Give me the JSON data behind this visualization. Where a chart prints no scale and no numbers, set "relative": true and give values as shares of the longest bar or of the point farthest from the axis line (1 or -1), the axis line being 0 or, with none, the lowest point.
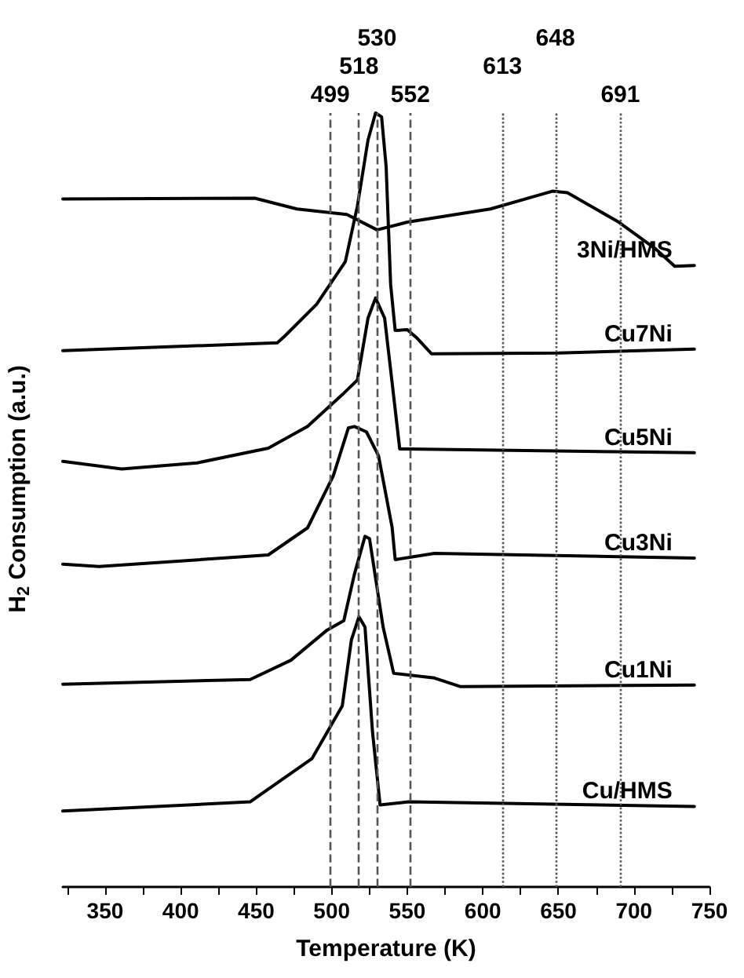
{
  "chart_data": {
    "type": "line",
    "xlabel": "Temperature (K)",
    "ylabel": "H$_{2}$ Consumption (a.u.)",
    "relative": true,
    "legend": false,
    "grid": false,
    "marker": "none",
    "line_style": "solid",
    "xlim": [
      322,
      750
    ],
    "xticks": [
      {
        "value": 325,
        "label": null
      },
      350,
      {
        "value": 375,
        "label": null
      },
      400,
      {
        "value": 425,
        "label": null
      },
      450,
      {
        "value": 475,
        "label": null
      },
      500,
      {
        "value": 525,
        "label": null
      },
      550,
      {
        "value": 575,
        "label": null
      },
      600,
      {
        "value": 625,
        "label": null
      },
      650,
      {
        "value": 675,
        "label": null
      },
      700,
      {
        "value": 725,
        "label": null
      },
      750
    ],
    "series": [
      {
        "name": "3Ni/HMS",
        "color": "#000000",
        "x": [
          322,
          449,
          477,
          510,
          530,
          550,
          605,
          646,
          656,
          690,
          714,
          727,
          740
        ],
        "values": [
          0.889,
          0.89,
          0.876,
          0.869,
          0.849,
          0.859,
          0.876,
          0.899,
          0.897,
          0.859,
          0.825,
          0.802,
          0.803
        ]
      },
      {
        "name": "Cu7Ni",
        "color": "#000000",
        "x": [
          322,
          464,
          469,
          490,
          509,
          517,
          524,
          529,
          533,
          536,
          539,
          542,
          550,
          556,
          566,
          650,
          740
        ],
        "values": [
          0.693,
          0.703,
          0.712,
          0.753,
          0.808,
          0.88,
          0.965,
          1.0,
          0.995,
          0.931,
          0.778,
          0.719,
          0.72,
          0.71,
          0.689,
          0.69,
          0.695
        ]
      },
      {
        "name": "Cu5Ni",
        "color": "#000000",
        "x": [
          322,
          361,
          411,
          458,
          484,
          508,
          517,
          524,
          529,
          535,
          540,
          545,
          550,
          740
        ],
        "values": [
          0.55,
          0.54,
          0.548,
          0.567,
          0.595,
          0.638,
          0.655,
          0.735,
          0.761,
          0.735,
          0.651,
          0.566,
          0.566,
          0.561
        ]
      },
      {
        "name": "Cu3Ni",
        "color": "#000000",
        "x": [
          322,
          346,
          458,
          484,
          501,
          511,
          515,
          523,
          531,
          540,
          542,
          568,
          740
        ],
        "values": [
          0.417,
          0.414,
          0.429,
          0.464,
          0.531,
          0.593,
          0.595,
          0.588,
          0.557,
          0.464,
          0.423,
          0.431,
          0.425
        ]
      },
      {
        "name": "Cu1Ni",
        "color": "#000000",
        "x": [
          322,
          446,
          473,
          497,
          508,
          515,
          522,
          525,
          534,
          541,
          568,
          585,
          740
        ],
        "values": [
          0.262,
          0.268,
          0.293,
          0.332,
          0.344,
          0.404,
          0.453,
          0.45,
          0.336,
          0.276,
          0.27,
          0.259,
          0.261
        ]
      },
      {
        "name": "Cu/HMS",
        "color": "#000000",
        "x": [
          322,
          446,
          487,
          507,
          513,
          518,
          522,
          527,
          532,
          551,
          740
        ],
        "values": [
          0.098,
          0.11,
          0.166,
          0.234,
          0.319,
          0.349,
          0.336,
          0.2,
          0.106,
          0.11,
          0.104
        ]
      }
    ],
    "ref_lines": [
      {
        "axis": "x",
        "value": 499,
        "label": "499",
        "color": "#555555",
        "line_style": "dashed"
      },
      {
        "axis": "x",
        "value": 518,
        "label": "518",
        "color": "#555555",
        "line_style": "dashed"
      },
      {
        "axis": "x",
        "value": 530,
        "label": "530",
        "color": "#555555",
        "line_style": "dashed"
      },
      {
        "axis": "x",
        "value": 552,
        "label": "552",
        "color": "#555555",
        "line_style": "dashed"
      },
      {
        "axis": "x",
        "value": 613,
        "label": "613",
        "color": "#555555",
        "line_style": "dotted"
      },
      {
        "axis": "x",
        "value": 648,
        "label": "648",
        "color": "#555555",
        "line_style": "dotted"
      },
      {
        "axis": "x",
        "value": 691,
        "label": "691",
        "color": "#555555",
        "line_style": "dotted"
      }
    ]
  }
}
